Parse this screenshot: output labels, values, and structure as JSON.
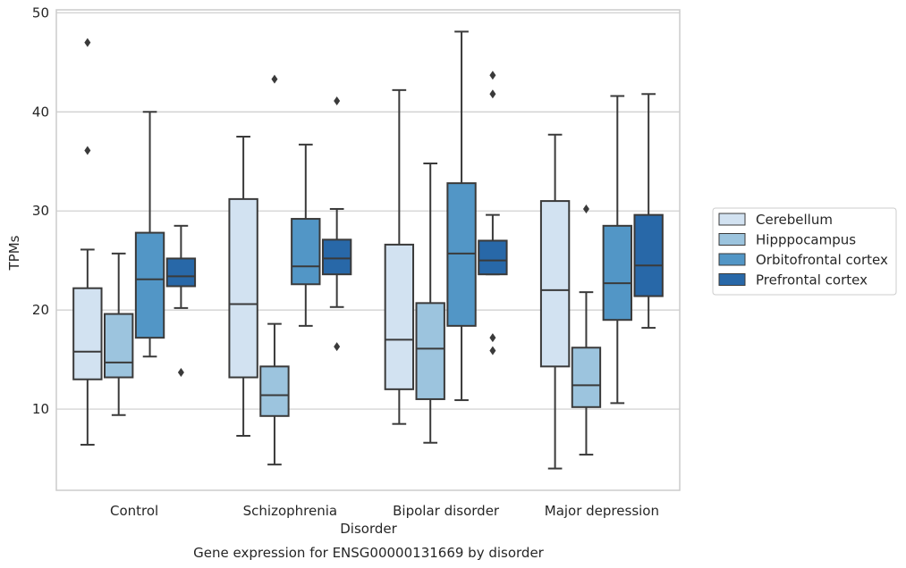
{
  "chart_data": {
    "type": "box",
    "title": "",
    "xlabel": "Disorder",
    "ylabel": "TPMs",
    "caption": "Gene expression for ENSG00000131669 by disorder",
    "ylim": [
      1.8,
      50.3
    ],
    "yticks": [
      10,
      20,
      30,
      40,
      50
    ],
    "grid": "horizontal",
    "legend_position": "right",
    "categories": [
      "Control",
      "Schizophrenia",
      "Bipolar disorder",
      "Major depression"
    ],
    "series": [
      {
        "name": "Cerebellum",
        "color": "#d2e2f1",
        "boxes": [
          {
            "whislo": 6.4,
            "q1": 13.0,
            "med": 15.8,
            "q3": 22.2,
            "whishi": 26.1,
            "fliers": [
              47.0,
              36.1
            ]
          },
          {
            "whislo": 7.3,
            "q1": 13.2,
            "med": 20.6,
            "q3": 31.2,
            "whishi": 37.5,
            "fliers": []
          },
          {
            "whislo": 8.5,
            "q1": 12.0,
            "med": 17.0,
            "q3": 26.6,
            "whishi": 42.2,
            "fliers": []
          },
          {
            "whislo": 4.0,
            "q1": 14.3,
            "med": 22.0,
            "q3": 31.0,
            "whishi": 37.7,
            "fliers": []
          }
        ]
      },
      {
        "name": "Hipppocampus",
        "color": "#9cc4de",
        "boxes": [
          {
            "whislo": 9.4,
            "q1": 13.2,
            "med": 14.7,
            "q3": 19.6,
            "whishi": 25.7,
            "fliers": []
          },
          {
            "whislo": 4.4,
            "q1": 9.3,
            "med": 11.4,
            "q3": 14.3,
            "whishi": 18.6,
            "fliers": [
              43.3
            ]
          },
          {
            "whislo": 6.6,
            "q1": 11.0,
            "med": 16.1,
            "q3": 20.7,
            "whishi": 34.8,
            "fliers": []
          },
          {
            "whislo": 5.4,
            "q1": 10.2,
            "med": 12.4,
            "q3": 16.2,
            "whishi": 21.8,
            "fliers": [
              30.2
            ]
          }
        ]
      },
      {
        "name": "Orbitofrontal cortex",
        "color": "#5296c6",
        "boxes": [
          {
            "whislo": 15.3,
            "q1": 17.2,
            "med": 23.1,
            "q3": 27.8,
            "whishi": 40.0,
            "fliers": []
          },
          {
            "whislo": 18.4,
            "q1": 22.6,
            "med": 24.4,
            "q3": 29.2,
            "whishi": 36.7,
            "fliers": []
          },
          {
            "whislo": 10.9,
            "q1": 18.4,
            "med": 25.7,
            "q3": 32.8,
            "whishi": 48.1,
            "fliers": []
          },
          {
            "whislo": 10.6,
            "q1": 19.0,
            "med": 22.7,
            "q3": 28.5,
            "whishi": 41.6,
            "fliers": []
          }
        ]
      },
      {
        "name": "Prefrontal cortex",
        "color": "#2868a8",
        "boxes": [
          {
            "whislo": 20.2,
            "q1": 22.4,
            "med": 23.4,
            "q3": 25.2,
            "whishi": 28.5,
            "fliers": [
              13.7
            ]
          },
          {
            "whislo": 20.3,
            "q1": 23.6,
            "med": 25.2,
            "q3": 27.1,
            "whishi": 30.2,
            "fliers": [
              41.1,
              16.3
            ]
          },
          {
            "whislo": 23.6,
            "q1": 23.6,
            "med": 25.0,
            "q3": 27.0,
            "whishi": 29.6,
            "fliers": [
              43.7,
              41.8,
              17.2,
              15.9
            ]
          },
          {
            "whislo": 18.2,
            "q1": 21.4,
            "med": 24.5,
            "q3": 29.6,
            "whishi": 41.8,
            "fliers": []
          }
        ]
      }
    ]
  }
}
